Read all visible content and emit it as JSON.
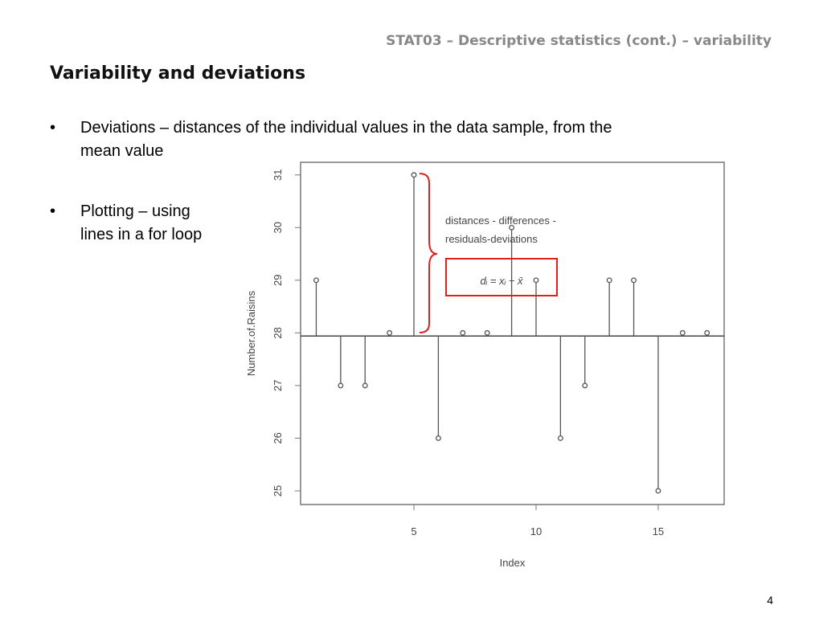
{
  "header": {
    "course": "STAT03 – Descriptive  statistics (cont.) – variability",
    "title": "Variability and deviations",
    "page": "4"
  },
  "bullets": [
    {
      "lines": [
        "Deviations – distances of  the individual values in the data sample, from the",
        "mean value"
      ]
    },
    {
      "lines": [
        "Plotting – using",
        "lines in a for loop"
      ]
    }
  ],
  "chart_data": {
    "type": "deviation",
    "xlabel": "Index",
    "ylabel": "Number.of.Raisins",
    "x": [
      1,
      2,
      3,
      4,
      5,
      6,
      7,
      8,
      9,
      10,
      11,
      12,
      13,
      14,
      15,
      16,
      17
    ],
    "values": [
      29,
      27,
      27,
      28,
      31,
      26,
      28,
      28,
      30,
      29,
      26,
      27,
      29,
      29,
      25,
      28,
      28
    ],
    "mean_line": 27.94,
    "color": "#555555",
    "xlim": [
      0.36,
      17.7
    ],
    "ylim": [
      24.74,
      31.24
    ],
    "xticks": [
      5,
      10,
      15
    ],
    "yticks": [
      25,
      26,
      27,
      28,
      29,
      30,
      31
    ],
    "annotations": {
      "color": "#e0201c",
      "lines": [
        "distances - differences -",
        "residuals-deviations"
      ],
      "formula": "dᵢ = xᵢ − x̄"
    }
  }
}
